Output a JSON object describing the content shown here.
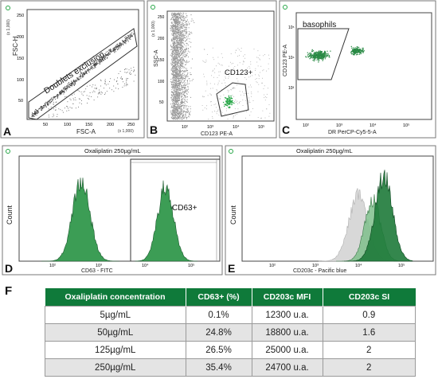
{
  "colors": {
    "gate_green": "#26a646",
    "hist_green": "#3c9d55",
    "gray_events": "#9a9a9a",
    "table_header": "#0f7a3a",
    "row_alt": "#e4e4e4"
  },
  "panels": {
    "A": {
      "letter": "A",
      "xlabel": "FSC-A",
      "ylabel": "FSC-H",
      "gate_label": "Doublets exclusion",
      "y_mult": "(x 1,000)",
      "x_mult": "(x 1,000)",
      "xticks": [
        "50",
        "100",
        "150",
        "200",
        "250"
      ],
      "yticks": [
        "50",
        "100",
        "150",
        "200",
        "250"
      ]
    },
    "B": {
      "letter": "B",
      "xlabel": "CD123 PE-A",
      "ylabel": "SSC-A",
      "gate_label": "CD123+",
      "y_mult": "(x 1,000)",
      "xticks": [
        "10²",
        "10³",
        "10⁴",
        "10⁵"
      ],
      "yticks": [
        "50",
        "100",
        "150",
        "200",
        "250"
      ]
    },
    "C": {
      "letter": "C",
      "xlabel": "DR PerCP-Cy5-5-A",
      "ylabel": "CD123 PE-A",
      "gate_label": "basophils",
      "xticks": [
        "10²",
        "10³",
        "10⁴",
        "10⁵"
      ],
      "yticks": [
        "10³",
        "10⁴",
        "10⁵"
      ]
    },
    "D": {
      "letter": "D",
      "title": "Oxaliplatin 250µg/mL",
      "xlabel": "CD63 - FITC",
      "ylabel": "Count",
      "gate_label": "CD63+",
      "xticks": [
        "10²",
        "10³",
        "10⁴",
        "10⁵"
      ]
    },
    "E": {
      "letter": "E",
      "title": "Oxaliplatin 250µg/mL",
      "xlabel": "CD203c - Pacific blue",
      "ylabel": "Count",
      "xticks": [
        "10²",
        "10³",
        "10⁴",
        "10⁵"
      ]
    }
  },
  "table": {
    "label": "F",
    "headers": [
      "Oxaliplatin concentration",
      "CD63+ (%)",
      "CD203c MFI",
      "CD203c SI"
    ],
    "rows": [
      [
        "5µg/mL",
        "0.1%",
        "12300 u.a.",
        "0.9"
      ],
      [
        "50µg/mL",
        "24.8%",
        "18800 u.a.",
        "1.6"
      ],
      [
        "125µg/mL",
        "26.5%",
        "25000 u.a.",
        "2"
      ],
      [
        "250µg/mL",
        "35.4%",
        "24700 u.a.",
        "2"
      ]
    ]
  },
  "chart_data": [
    {
      "type": "scatter",
      "panel": "A",
      "xlabel": "FSC-A",
      "ylabel": "FSC-H",
      "gate": "Doublets exclusion",
      "xlim": [
        0,
        262
      ],
      "ylim": [
        0,
        262
      ],
      "note": "singlet events along diagonal"
    },
    {
      "type": "scatter",
      "panel": "B",
      "xlabel": "CD123 PE-A",
      "ylabel": "SSC-A",
      "gate": "CD123+",
      "xscale": "log",
      "ylim": [
        0,
        262
      ]
    },
    {
      "type": "scatter",
      "panel": "C",
      "xlabel": "DR PerCP-Cy5-5-A",
      "ylabel": "CD123 PE-A",
      "gate": "basophils",
      "xscale": "log",
      "yscale": "log"
    },
    {
      "type": "area",
      "panel": "D",
      "title": "Oxaliplatin 250µg/mL",
      "xlabel": "CD63 - FITC",
      "ylabel": "Count",
      "xscale": "log",
      "gate": "CD63+",
      "series": [
        {
          "values": [
            [
              400,
              1.0
            ]
          ]
        },
        {
          "values": [
            [
              12000,
              0.95
            ]
          ]
        }
      ]
    },
    {
      "type": "area",
      "panel": "E",
      "title": "Oxaliplatin 250µg/mL",
      "xlabel": "CD203c - Pacific blue",
      "ylabel": "Count",
      "xscale": "log",
      "series": [
        {
          "values": [
            [
              7000,
              0.75
            ]
          ]
        },
        {
          "values": [
            [
              14000,
              0.7
            ]
          ]
        },
        {
          "values": [
            [
              22000,
              1.0
            ]
          ]
        }
      ]
    }
  ]
}
